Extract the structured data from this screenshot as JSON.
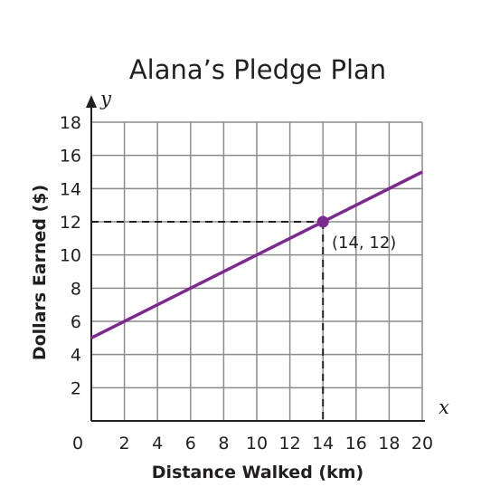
{
  "chart_data": {
    "type": "line",
    "title": "Alana’s Pledge Plan",
    "xlabel": "Distance Walked (km)",
    "ylabel": "Dollars Earned ($)",
    "x_axis_var": "x",
    "y_axis_var": "y",
    "xlim": [
      0,
      20
    ],
    "ylim": [
      0,
      18
    ],
    "x_ticks": [
      "2",
      "4",
      "6",
      "8",
      "10",
      "12",
      "14",
      "16",
      "18",
      "20"
    ],
    "y_ticks": [
      "2",
      "4",
      "6",
      "8",
      "10",
      "12",
      "14",
      "16",
      "18"
    ],
    "origin_label": "0",
    "grid": true,
    "series": [
      {
        "x": [
          0,
          20
        ],
        "y": [
          5,
          15
        ],
        "color": "#7b2b8e"
      }
    ],
    "highlight_point": {
      "x": 14,
      "y": 12,
      "label": "(14, 12)"
    }
  }
}
